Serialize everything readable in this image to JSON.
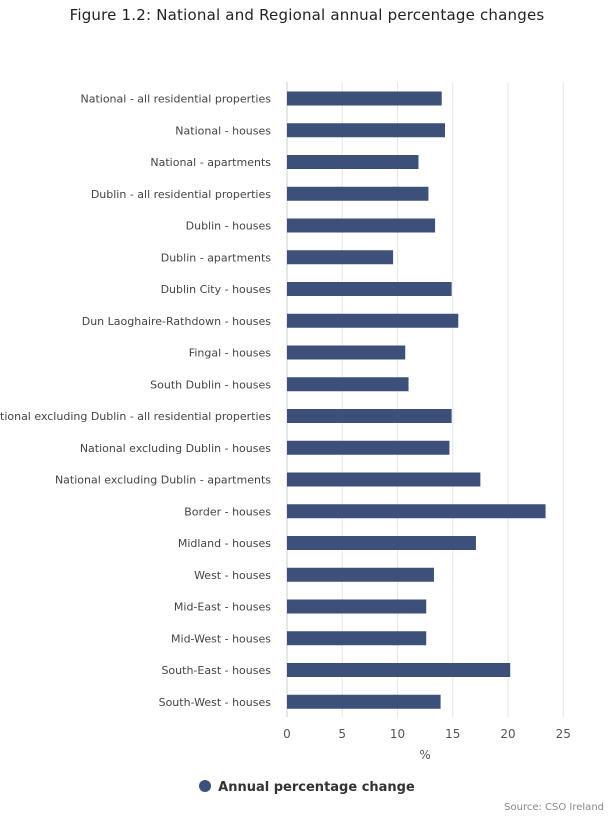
{
  "chart_data": {
    "type": "bar",
    "orientation": "horizontal",
    "title": "Figure 1.2: National and Regional annual percentage changes",
    "xlabel": "%",
    "ylabel": "",
    "xlim": [
      0,
      25
    ],
    "xticks": [
      0,
      5,
      10,
      15,
      20,
      25
    ],
    "grid": true,
    "legend_position": "bottom",
    "categories": [
      "National - all residential properties",
      "National - houses",
      "National - apartments",
      "Dublin - all residential properties",
      "Dublin - houses",
      "Dublin - apartments",
      "Dublin City - houses",
      "Dun Laoghaire-Rathdown - houses",
      "Fingal - houses",
      "South Dublin - houses",
      "National excluding Dublin - all residential properties",
      "National excluding Dublin - houses",
      "National excluding Dublin - apartments",
      "Border - houses",
      "Midland - houses",
      "West - houses",
      "Mid-East - houses",
      "Mid-West - houses",
      "South-East - houses",
      "South-West - houses"
    ],
    "series": [
      {
        "name": "Annual percentage change",
        "color": "#3d5079",
        "values": [
          14.0,
          14.3,
          11.9,
          12.8,
          13.4,
          9.6,
          14.9,
          15.5,
          10.7,
          11.0,
          14.9,
          14.7,
          17.5,
          23.4,
          17.1,
          13.3,
          12.6,
          12.6,
          20.2,
          13.9
        ]
      }
    ],
    "source": "Source: CSO Ireland"
  }
}
